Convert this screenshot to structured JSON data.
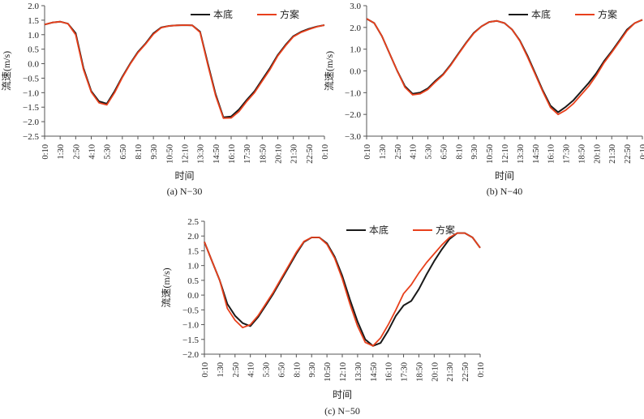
{
  "colors": {
    "baseline": "#1a1a1a",
    "scheme": "#e8401c",
    "axis": "#555555"
  },
  "chart_data": [
    {
      "type": "line",
      "caption": "(a) N−30",
      "xlabel": "时间",
      "ylabel": "流速(m/s)",
      "ylim": [
        -2.5,
        2.0
      ],
      "yticks": [
        "2.0",
        "1.5",
        "1.0",
        "0.5",
        "0.0",
        "−0.5",
        "−1.0",
        "−1.5",
        "−2.0",
        "−2.5"
      ],
      "xtick_labels": [
        "0:10",
        "1:30",
        "2:50",
        "4:10",
        "5:30",
        "6:50",
        "8:10",
        "9:30",
        "10:50",
        "12:10",
        "13:30",
        "14:50",
        "16:10",
        "17:30",
        "18:50",
        "20:10",
        "21:30",
        "22:50",
        "0:10"
      ],
      "legend_position": "top-right",
      "series": [
        {
          "name": "本底",
          "color": "#1a1a1a",
          "x": [
            0,
            0.5,
            1,
            1.5,
            2,
            2.5,
            3,
            3.5,
            4,
            4.5,
            5,
            5.5,
            6,
            6.5,
            7,
            7.5,
            8,
            8.5,
            9,
            9.5,
            10,
            10.5,
            11,
            11.5,
            12,
            12.5,
            13,
            13.5,
            14,
            14.5,
            15,
            15.5,
            16,
            16.5,
            17,
            17.5,
            18
          ],
          "y": [
            1.35,
            1.42,
            1.45,
            1.38,
            1.05,
            -0.15,
            -0.95,
            -1.3,
            -1.38,
            -0.95,
            -0.45,
            0.0,
            0.4,
            0.7,
            1.05,
            1.25,
            1.3,
            1.32,
            1.33,
            1.32,
            1.1,
            0.0,
            -1.05,
            -1.85,
            -1.82,
            -1.58,
            -1.25,
            -0.95,
            -0.55,
            -0.15,
            0.3,
            0.65,
            0.95,
            1.1,
            1.2,
            1.28,
            1.33
          ]
        },
        {
          "name": "方案",
          "color": "#e8401c",
          "x": [
            0,
            0.5,
            1,
            1.5,
            2,
            2.5,
            3,
            3.5,
            4,
            4.5,
            5,
            5.5,
            6,
            6.5,
            7,
            7.5,
            8,
            8.5,
            9,
            9.5,
            10,
            10.5,
            11,
            11.5,
            12,
            12.5,
            13,
            13.5,
            14,
            14.5,
            15,
            15.5,
            16,
            16.5,
            17,
            17.5,
            18
          ],
          "y": [
            1.35,
            1.42,
            1.45,
            1.38,
            1.0,
            -0.2,
            -0.98,
            -1.35,
            -1.42,
            -1.0,
            -0.48,
            -0.02,
            0.38,
            0.68,
            1.02,
            1.24,
            1.3,
            1.32,
            1.33,
            1.32,
            1.08,
            -0.05,
            -1.1,
            -1.88,
            -1.87,
            -1.65,
            -1.3,
            -1.0,
            -0.6,
            -0.2,
            0.27,
            0.62,
            0.93,
            1.08,
            1.18,
            1.27,
            1.33
          ]
        }
      ]
    },
    {
      "type": "line",
      "caption": "(b) N−40",
      "xlabel": "时间",
      "ylabel": "流速(m/s)",
      "ylim": [
        -3.0,
        3.0
      ],
      "yticks": [
        "3.0",
        "2.0",
        "1.0",
        "0.0",
        "−1.0",
        "−2.0",
        "−3.0"
      ],
      "xtick_labels": [
        "0:10",
        "1:30",
        "2:50",
        "4:10",
        "5:30",
        "6:50",
        "8:10",
        "9:30",
        "10:50",
        "12:10",
        "13:30",
        "14:50",
        "16:10",
        "17:30",
        "18:50",
        "20:10",
        "21:30",
        "22:50",
        "0:10"
      ],
      "legend_position": "top-right",
      "series": [
        {
          "name": "本底",
          "color": "#1a1a1a",
          "x": [
            0,
            0.5,
            1,
            1.5,
            2,
            2.5,
            3,
            3.5,
            4,
            4.5,
            5,
            5.5,
            6,
            6.5,
            7,
            7.5,
            8,
            8.5,
            9,
            9.5,
            10,
            10.5,
            11,
            11.5,
            12,
            12.5,
            13,
            13.5,
            14,
            14.5,
            15,
            15.5,
            16,
            16.5,
            17,
            17.5,
            18
          ],
          "y": [
            2.4,
            2.2,
            1.6,
            0.8,
            0.0,
            -0.7,
            -1.05,
            -1.0,
            -0.8,
            -0.45,
            -0.15,
            0.3,
            0.8,
            1.3,
            1.75,
            2.05,
            2.25,
            2.3,
            2.2,
            1.9,
            1.4,
            0.7,
            -0.1,
            -0.9,
            -1.6,
            -1.9,
            -1.65,
            -1.35,
            -0.95,
            -0.55,
            -0.1,
            0.45,
            0.9,
            1.4,
            1.9,
            2.2,
            2.35
          ]
        },
        {
          "name": "方案",
          "color": "#e8401c",
          "x": [
            0,
            0.5,
            1,
            1.5,
            2,
            2.5,
            3,
            3.5,
            4,
            4.5,
            5,
            5.5,
            6,
            6.5,
            7,
            7.5,
            8,
            8.5,
            9,
            9.5,
            10,
            10.5,
            11,
            11.5,
            12,
            12.5,
            13,
            13.5,
            14,
            14.5,
            15,
            15.5,
            16,
            16.5,
            17,
            17.5,
            18
          ],
          "y": [
            2.4,
            2.2,
            1.6,
            0.8,
            0.0,
            -0.75,
            -1.1,
            -1.05,
            -0.85,
            -0.5,
            -0.18,
            0.27,
            0.78,
            1.28,
            1.73,
            2.05,
            2.25,
            2.3,
            2.2,
            1.9,
            1.38,
            0.65,
            -0.15,
            -0.95,
            -1.68,
            -2.0,
            -1.8,
            -1.5,
            -1.1,
            -0.7,
            -0.2,
            0.38,
            0.85,
            1.35,
            1.85,
            2.2,
            2.35
          ]
        }
      ]
    },
    {
      "type": "line",
      "caption": "(c) N−50",
      "xlabel": "时间",
      "ylabel": "流速(m/s)",
      "ylim": [
        -2.0,
        2.5
      ],
      "yticks": [
        "2.5",
        "2.0",
        "1.5",
        "1.0",
        "0.5",
        "0.0",
        "−0.5",
        "−1.0",
        "−1.5",
        "−2.0"
      ],
      "xtick_labels": [
        "0:10",
        "1:30",
        "2:50",
        "4:10",
        "5:30",
        "6:50",
        "8:10",
        "9:30",
        "10:50",
        "12:10",
        "13:30",
        "14:50",
        "16:10",
        "17:30",
        "18:50",
        "20:10",
        "21:30",
        "22:50",
        "0:10"
      ],
      "legend_position": "top-right",
      "series": [
        {
          "name": "本底",
          "color": "#1a1a1a",
          "x": [
            0,
            0.5,
            1,
            1.5,
            2,
            2.5,
            3,
            3.5,
            4,
            4.5,
            5,
            5.5,
            6,
            6.5,
            7,
            7.5,
            8,
            8.5,
            9,
            9.5,
            10,
            10.5,
            11,
            11.5,
            12,
            12.5,
            13,
            13.5,
            14,
            14.5,
            15,
            15.5,
            16,
            16.5,
            17,
            17.5,
            18
          ],
          "y": [
            1.8,
            1.15,
            0.5,
            -0.3,
            -0.7,
            -0.95,
            -1.05,
            -0.75,
            -0.35,
            0.05,
            0.5,
            0.95,
            1.4,
            1.8,
            1.95,
            1.95,
            1.75,
            1.3,
            0.65,
            -0.15,
            -0.9,
            -1.5,
            -1.72,
            -1.62,
            -1.2,
            -0.7,
            -0.35,
            -0.2,
            0.2,
            0.7,
            1.15,
            1.55,
            1.9,
            2.1,
            2.1,
            1.95,
            1.6
          ]
        },
        {
          "name": "方案",
          "color": "#e8401c",
          "x": [
            0,
            0.5,
            1,
            1.5,
            2,
            2.5,
            3,
            3.5,
            4,
            4.5,
            5,
            5.5,
            6,
            6.5,
            7,
            7.5,
            8,
            8.5,
            9,
            9.5,
            10,
            10.5,
            11,
            11.5,
            12,
            12.5,
            13,
            13.5,
            14,
            14.5,
            15,
            15.5,
            16,
            16.5,
            17,
            17.5,
            18
          ],
          "y": [
            1.8,
            1.15,
            0.5,
            -0.45,
            -0.85,
            -1.1,
            -1.0,
            -0.7,
            -0.3,
            0.1,
            0.55,
            1.0,
            1.45,
            1.82,
            1.95,
            1.95,
            1.72,
            1.25,
            0.55,
            -0.3,
            -1.05,
            -1.6,
            -1.72,
            -1.45,
            -1.0,
            -0.5,
            0.05,
            0.35,
            0.75,
            1.1,
            1.4,
            1.7,
            1.95,
            2.1,
            2.1,
            1.95,
            1.6
          ]
        }
      ]
    }
  ]
}
